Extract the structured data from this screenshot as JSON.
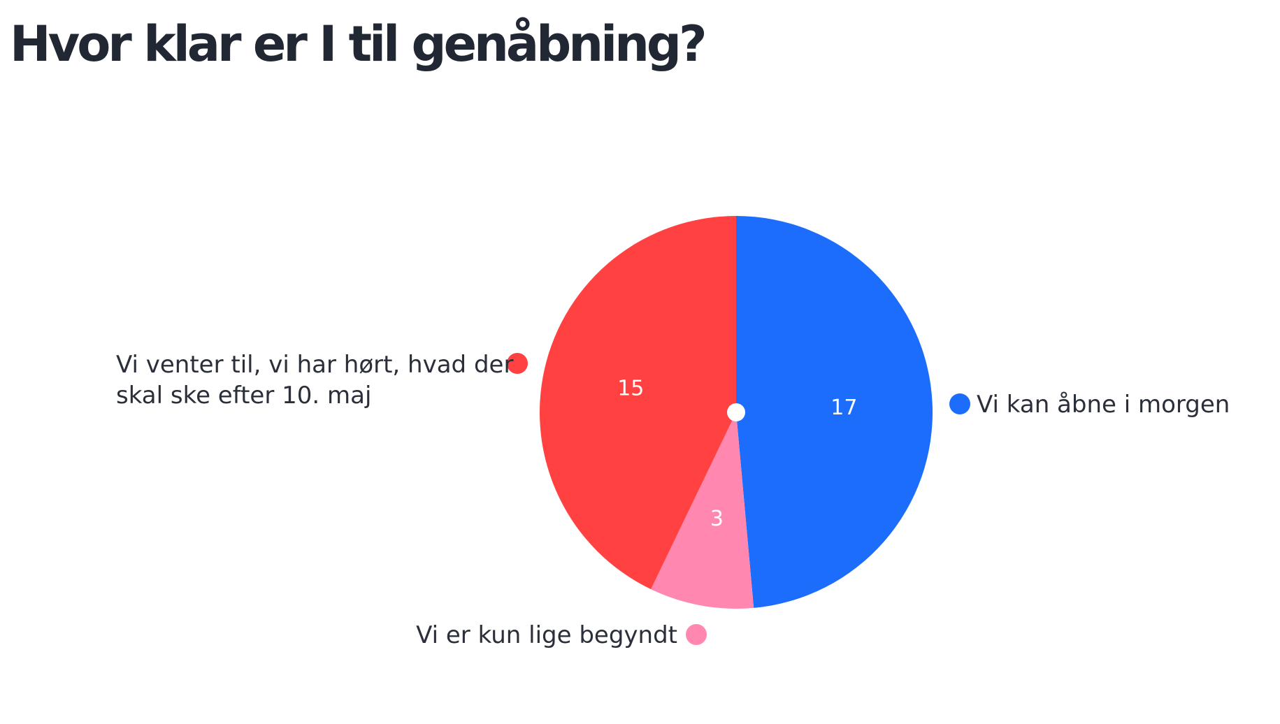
{
  "title": "Hvor klar er I til genåbning?",
  "chart_data": {
    "type": "pie",
    "title": "Hvor klar er I til genåbning?",
    "total": 35,
    "slices": [
      {
        "label": "Vi kan åbne i morgen",
        "value": 17,
        "color": "#1c6dfc"
      },
      {
        "label": "Vi er kun lige begyndt",
        "value": 3,
        "color": "#ff87b0"
      },
      {
        "label": "Vi venter til, vi har hørt, hvad der skal ske efter 10. maj",
        "value": 15,
        "color": "#ff4141"
      }
    ],
    "start_angle_deg": 0,
    "direction": "clockwise",
    "legend": "labels-beside-slices"
  }
}
